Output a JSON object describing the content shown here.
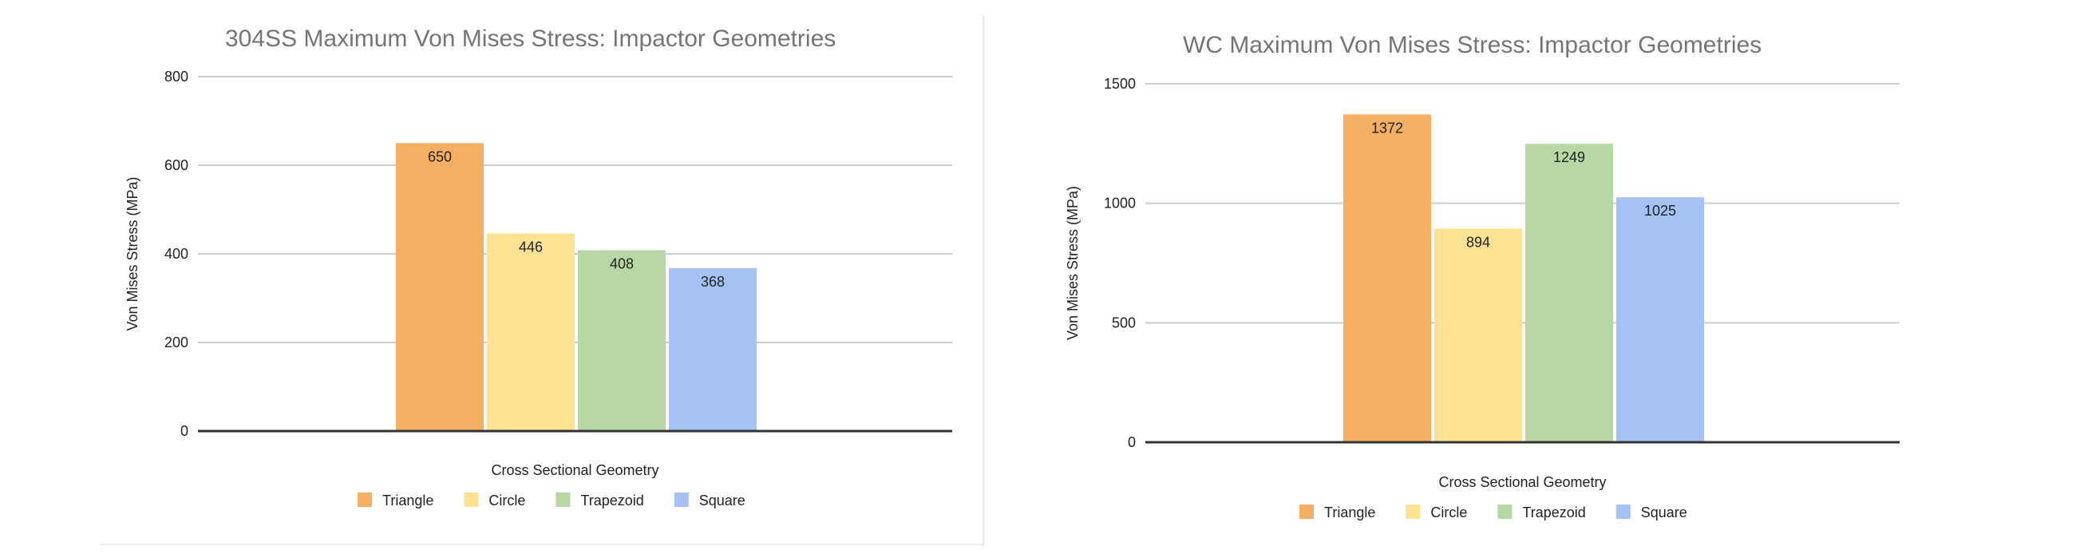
{
  "colors": {
    "Triangle": "#f4af63",
    "Circle": "#fde293",
    "Trapezoid": "#b7d8a4",
    "Square": "#a4c2f4",
    "gridline": "#cccccc",
    "baseline": "#333333"
  },
  "chart_data": [
    {
      "type": "bar",
      "title": "304SS Maximum Von Mises Stress: Impactor Geometries",
      "xlabel": "Cross Sectional Geometry",
      "ylabel": "Von Mises Stress (MPa)",
      "ylim": [
        0,
        800
      ],
      "yticks": [
        0,
        200,
        400,
        600,
        800
      ],
      "grid": true,
      "legend_position": "bottom",
      "categories": [
        ""
      ],
      "series": [
        {
          "name": "Triangle",
          "values": [
            650
          ]
        },
        {
          "name": "Circle",
          "values": [
            446
          ]
        },
        {
          "name": "Trapezoid",
          "values": [
            408
          ]
        },
        {
          "name": "Square",
          "values": [
            368
          ]
        }
      ],
      "data_labels": [
        "650",
        "446",
        "408",
        "368"
      ]
    },
    {
      "type": "bar",
      "title": "WC Maximum Von Mises Stress: Impactor Geometries",
      "xlabel": "Cross Sectional Geometry",
      "ylabel": "Von Mises Stress (MPa)",
      "ylim": [
        0,
        1500
      ],
      "yticks": [
        0,
        500,
        1000,
        1500
      ],
      "grid": true,
      "legend_position": "bottom",
      "categories": [
        ""
      ],
      "series": [
        {
          "name": "Triangle",
          "values": [
            1372
          ]
        },
        {
          "name": "Circle",
          "values": [
            894
          ]
        },
        {
          "name": "Trapezoid",
          "values": [
            1249
          ]
        },
        {
          "name": "Square",
          "values": [
            1025
          ]
        }
      ],
      "data_labels": [
        "1372",
        "894",
        "1249",
        "1025"
      ]
    }
  ]
}
